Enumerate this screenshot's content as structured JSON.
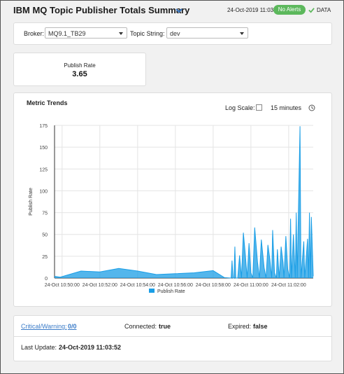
{
  "header": {
    "title": "IBM MQ Topic Publisher Totals Summary",
    "timestamp": "24-Oct-2019 11:03",
    "alert_badge": "No Alerts",
    "data_label": "DATA",
    "badge_color": "#5cb85c"
  },
  "filters": {
    "broker_label": "Broker:",
    "broker_value": "MQ9.1_TB29",
    "topic_label": "Topic String:",
    "topic_value": "dev"
  },
  "kpi": {
    "label": "Publish Rate",
    "value": "3.65"
  },
  "trends": {
    "title": "Metric Trends",
    "log_scale_label": "Log Scale:",
    "log_scale_checked": false,
    "time_range": "15 minutes"
  },
  "status": {
    "critical_label": "Critical/Warning:",
    "critical_value": "0/0",
    "connected_label": "Connected:",
    "connected_value": "true",
    "expired_label": "Expired:",
    "expired_value": "false",
    "last_update_label": "Last Update:",
    "last_update_value": "24-Oct-2019 11:03:52"
  },
  "chart_data": {
    "type": "area",
    "ylabel": "Publish Rate",
    "ylim": [
      0,
      175
    ],
    "yticks": [
      "0",
      "25",
      "50",
      "75",
      "100",
      "125",
      "150",
      "175"
    ],
    "xticks": [
      "24-Oct 10:50:00",
      "24-Oct 10:52:00",
      "24-Oct 10:54:00",
      "24-Oct 10:56:00",
      "24-Oct 10:58:00",
      "24-Oct 11:00:00",
      "24-Oct 11:02:00"
    ],
    "xlim_minutes": [
      -0.4,
      13.3
    ],
    "series": [
      {
        "name": "Publish Rate",
        "color": "#1a9ee6",
        "points": [
          [
            -0.4,
            2
          ],
          [
            -0.1,
            1
          ],
          [
            1.0,
            8
          ],
          [
            2.0,
            7
          ],
          [
            3.0,
            11
          ],
          [
            4.0,
            8
          ],
          [
            5.0,
            4
          ],
          [
            6.0,
            5
          ],
          [
            7.0,
            6
          ],
          [
            8.0,
            8.5
          ],
          [
            8.6,
            0.5
          ],
          [
            8.95,
            0
          ],
          [
            9.0,
            20
          ],
          [
            9.05,
            0
          ],
          [
            9.1,
            0
          ],
          [
            9.15,
            36
          ],
          [
            9.2,
            0
          ],
          [
            9.3,
            0
          ],
          [
            9.4,
            26
          ],
          [
            9.5,
            0
          ],
          [
            9.6,
            52
          ],
          [
            9.7,
            28
          ],
          [
            9.8,
            0
          ],
          [
            9.9,
            40
          ],
          [
            10.0,
            6
          ],
          [
            10.1,
            0
          ],
          [
            10.2,
            58
          ],
          [
            10.35,
            18
          ],
          [
            10.45,
            0
          ],
          [
            10.55,
            44
          ],
          [
            10.7,
            12
          ],
          [
            10.8,
            0
          ],
          [
            10.9,
            38
          ],
          [
            11.0,
            22
          ],
          [
            11.1,
            0
          ],
          [
            11.15,
            55
          ],
          [
            11.25,
            6
          ],
          [
            11.35,
            0
          ],
          [
            11.4,
            33
          ],
          [
            11.5,
            0
          ],
          [
            11.6,
            36
          ],
          [
            11.7,
            18
          ],
          [
            11.75,
            0
          ],
          [
            11.85,
            48
          ],
          [
            11.95,
            10
          ],
          [
            12.05,
            0
          ],
          [
            12.1,
            68
          ],
          [
            12.15,
            0
          ],
          [
            12.25,
            50
          ],
          [
            12.35,
            0
          ],
          [
            12.4,
            75
          ],
          [
            12.45,
            0
          ],
          [
            12.6,
            174
          ],
          [
            12.65,
            0
          ],
          [
            12.8,
            42
          ],
          [
            12.85,
            0
          ],
          [
            13.0,
            45
          ],
          [
            13.05,
            0
          ],
          [
            13.1,
            75
          ],
          [
            13.15,
            0
          ],
          [
            13.2,
            70
          ],
          [
            13.3,
            2
          ]
        ]
      }
    ],
    "legend": "bottom-center",
    "grid": true
  }
}
